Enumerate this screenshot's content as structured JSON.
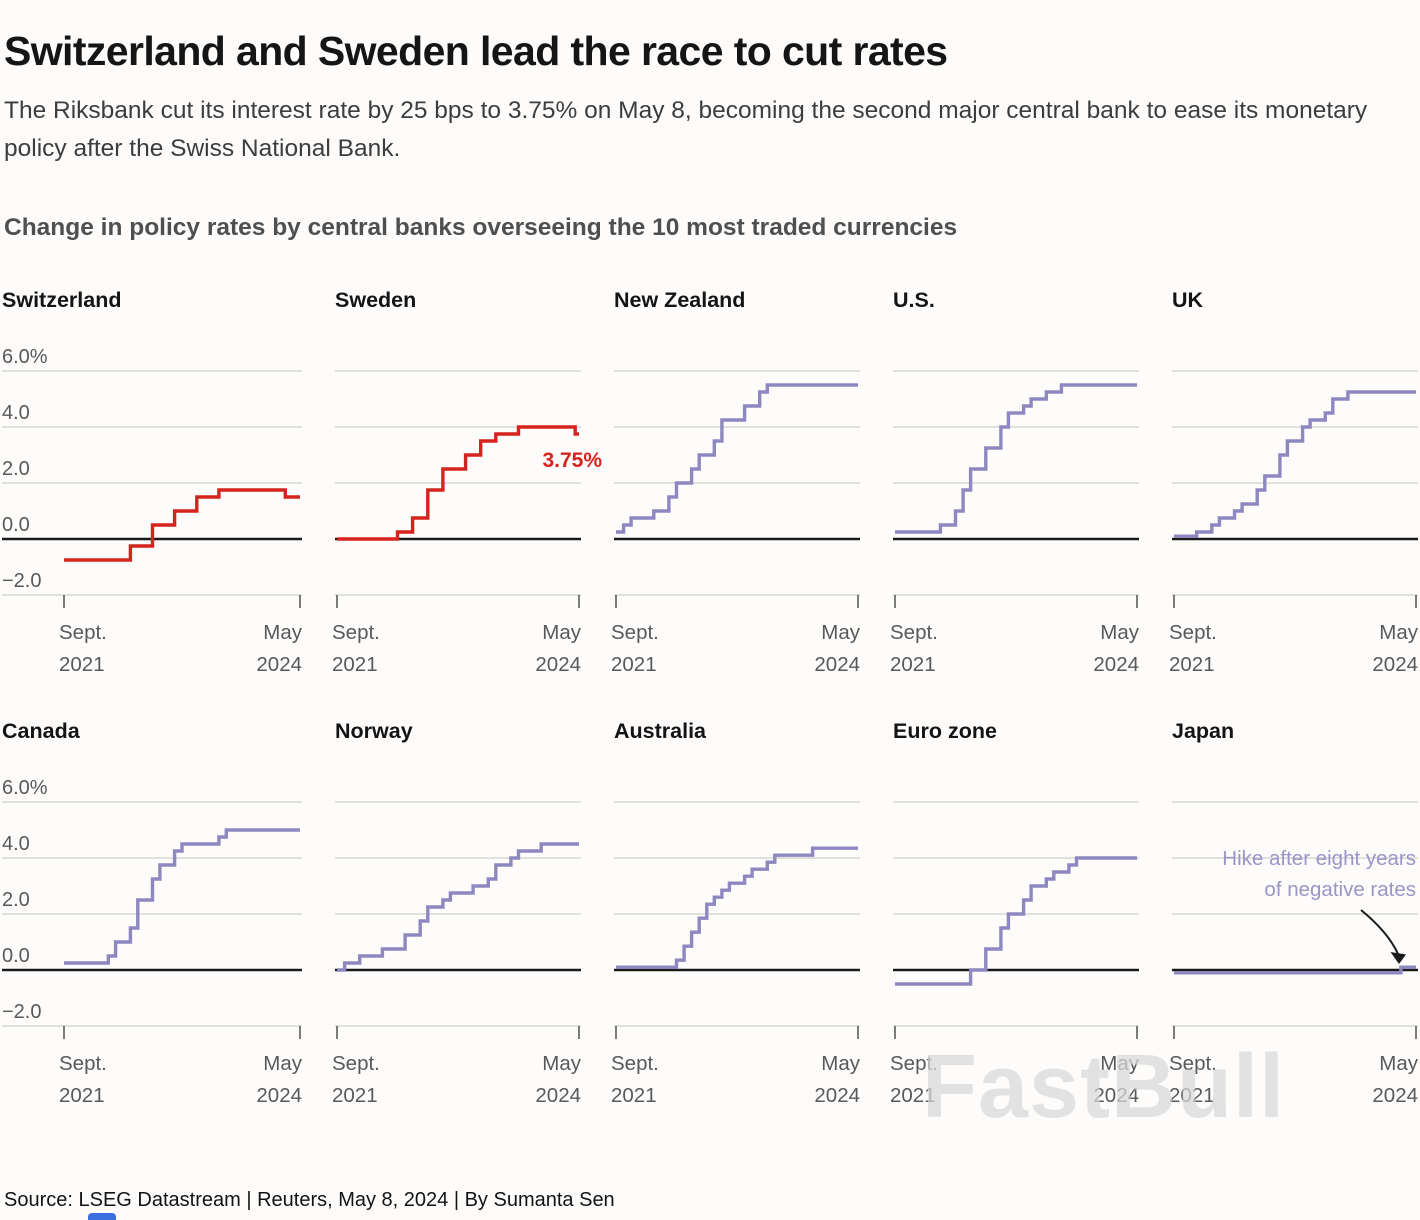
{
  "header": {
    "title": "Switzerland and Sweden lead the race to cut rates",
    "subtitle": "The Riksbank cut its interest rate by 25 bps to 3.75% on May 8, becoming the second major central bank to ease its monetary policy after the Swiss National Bank.",
    "section_heading": "Change in policy rates by central banks overseeing the 10 most traded currencies"
  },
  "watermark": "FastBull",
  "footer": {
    "source_line": "Source: LSEG Datastream | Reuters, May 8, 2024 | By Sumanta Sen"
  },
  "chart_data": {
    "type": "line",
    "variant": "step small-multiples (policy rate paths)",
    "x_unit": "months since Sept 2021",
    "x_domain": [
      0,
      32
    ],
    "x_tick_labels": [
      [
        "Sept.",
        "2021"
      ],
      [
        "May",
        "2024"
      ]
    ],
    "y_ticks": [
      6,
      4,
      2,
      0,
      -2
    ],
    "y_tick_labels": [
      "6.0%",
      "4.0",
      "2.0",
      "0.0",
      "−2.0"
    ],
    "grid": true,
    "colors": {
      "highlight": "#d6231e",
      "default": "#8e88c1",
      "zero_line": "#1a1a1a",
      "grid": "#d0cecb",
      "annotation": "#9b95c7",
      "tick": "#444444"
    },
    "panels": [
      {
        "name": "Switzerland",
        "color": "highlight",
        "y_axis_labels": true,
        "points": [
          [
            0,
            -0.75
          ],
          [
            9,
            -0.25
          ],
          [
            12,
            0.5
          ],
          [
            15,
            1.0
          ],
          [
            18,
            1.5
          ],
          [
            21,
            1.75
          ],
          [
            30,
            1.5
          ]
        ]
      },
      {
        "name": "Sweden",
        "color": "highlight",
        "y_axis_labels": false,
        "points": [
          [
            0,
            0.0
          ],
          [
            8,
            0.25
          ],
          [
            10,
            0.75
          ],
          [
            12,
            1.75
          ],
          [
            14,
            2.5
          ],
          [
            17,
            3.0
          ],
          [
            19,
            3.5
          ],
          [
            21,
            3.75
          ],
          [
            24,
            4.0
          ],
          [
            31.5,
            3.75
          ]
        ],
        "end_label": {
          "text": "3.75%",
          "at_value": 3.75
        }
      },
      {
        "name": "New Zealand",
        "color": "default",
        "y_axis_labels": false,
        "points": [
          [
            0,
            0.25
          ],
          [
            1,
            0.5
          ],
          [
            2,
            0.75
          ],
          [
            5,
            1.0
          ],
          [
            7,
            1.5
          ],
          [
            8,
            2.0
          ],
          [
            10,
            2.5
          ],
          [
            11,
            3.0
          ],
          [
            13,
            3.5
          ],
          [
            14,
            4.25
          ],
          [
            17,
            4.75
          ],
          [
            19,
            5.25
          ],
          [
            20,
            5.5
          ]
        ]
      },
      {
        "name": "U.S.",
        "color": "default",
        "y_axis_labels": false,
        "points": [
          [
            0,
            0.25
          ],
          [
            6,
            0.5
          ],
          [
            8,
            1.0
          ],
          [
            9,
            1.75
          ],
          [
            10,
            2.5
          ],
          [
            12,
            3.25
          ],
          [
            14,
            4.0
          ],
          [
            15,
            4.5
          ],
          [
            17,
            4.75
          ],
          [
            18,
            5.0
          ],
          [
            20,
            5.25
          ],
          [
            22,
            5.5
          ]
        ]
      },
      {
        "name": "UK",
        "color": "default",
        "y_axis_labels": false,
        "points": [
          [
            0,
            0.1
          ],
          [
            3,
            0.25
          ],
          [
            5,
            0.5
          ],
          [
            6,
            0.75
          ],
          [
            8,
            1.0
          ],
          [
            9,
            1.25
          ],
          [
            11,
            1.75
          ],
          [
            12,
            2.25
          ],
          [
            14,
            3.0
          ],
          [
            15,
            3.5
          ],
          [
            17,
            4.0
          ],
          [
            18,
            4.25
          ],
          [
            20,
            4.5
          ],
          [
            21,
            5.0
          ],
          [
            23,
            5.25
          ]
        ]
      },
      {
        "name": "Canada",
        "color": "default",
        "y_axis_labels": true,
        "points": [
          [
            0,
            0.25
          ],
          [
            6,
            0.5
          ],
          [
            7,
            1.0
          ],
          [
            9,
            1.5
          ],
          [
            10,
            2.5
          ],
          [
            12,
            3.25
          ],
          [
            13,
            3.75
          ],
          [
            15,
            4.25
          ],
          [
            16,
            4.5
          ],
          [
            21,
            4.75
          ],
          [
            22,
            5.0
          ]
        ]
      },
      {
        "name": "Norway",
        "color": "default",
        "y_axis_labels": false,
        "points": [
          [
            0,
            0.0
          ],
          [
            1,
            0.25
          ],
          [
            3,
            0.5
          ],
          [
            6,
            0.75
          ],
          [
            9,
            1.25
          ],
          [
            11,
            1.75
          ],
          [
            12,
            2.25
          ],
          [
            14,
            2.5
          ],
          [
            15,
            2.75
          ],
          [
            18,
            3.0
          ],
          [
            20,
            3.25
          ],
          [
            21,
            3.75
          ],
          [
            23,
            4.0
          ],
          [
            24,
            4.25
          ],
          [
            27,
            4.5
          ]
        ]
      },
      {
        "name": "Australia",
        "color": "default",
        "y_axis_labels": false,
        "points": [
          [
            0,
            0.1
          ],
          [
            8,
            0.35
          ],
          [
            9,
            0.85
          ],
          [
            10,
            1.35
          ],
          [
            11,
            1.85
          ],
          [
            12,
            2.35
          ],
          [
            13,
            2.6
          ],
          [
            14,
            2.85
          ],
          [
            15,
            3.1
          ],
          [
            17,
            3.35
          ],
          [
            18,
            3.6
          ],
          [
            20,
            3.85
          ],
          [
            21,
            4.1
          ],
          [
            26,
            4.35
          ]
        ]
      },
      {
        "name": "Euro zone",
        "color": "default",
        "y_axis_labels": false,
        "points": [
          [
            0,
            -0.5
          ],
          [
            10,
            0.0
          ],
          [
            12,
            0.75
          ],
          [
            14,
            1.5
          ],
          [
            15,
            2.0
          ],
          [
            17,
            2.5
          ],
          [
            18,
            3.0
          ],
          [
            20,
            3.25
          ],
          [
            21,
            3.5
          ],
          [
            23,
            3.75
          ],
          [
            24,
            4.0
          ]
        ]
      },
      {
        "name": "Japan",
        "color": "default",
        "y_axis_labels": false,
        "points": [
          [
            0,
            -0.1
          ],
          [
            30,
            0.1
          ]
        ],
        "annotation": {
          "lines": [
            "Hike after eight years",
            "of negative rates"
          ]
        }
      }
    ]
  }
}
